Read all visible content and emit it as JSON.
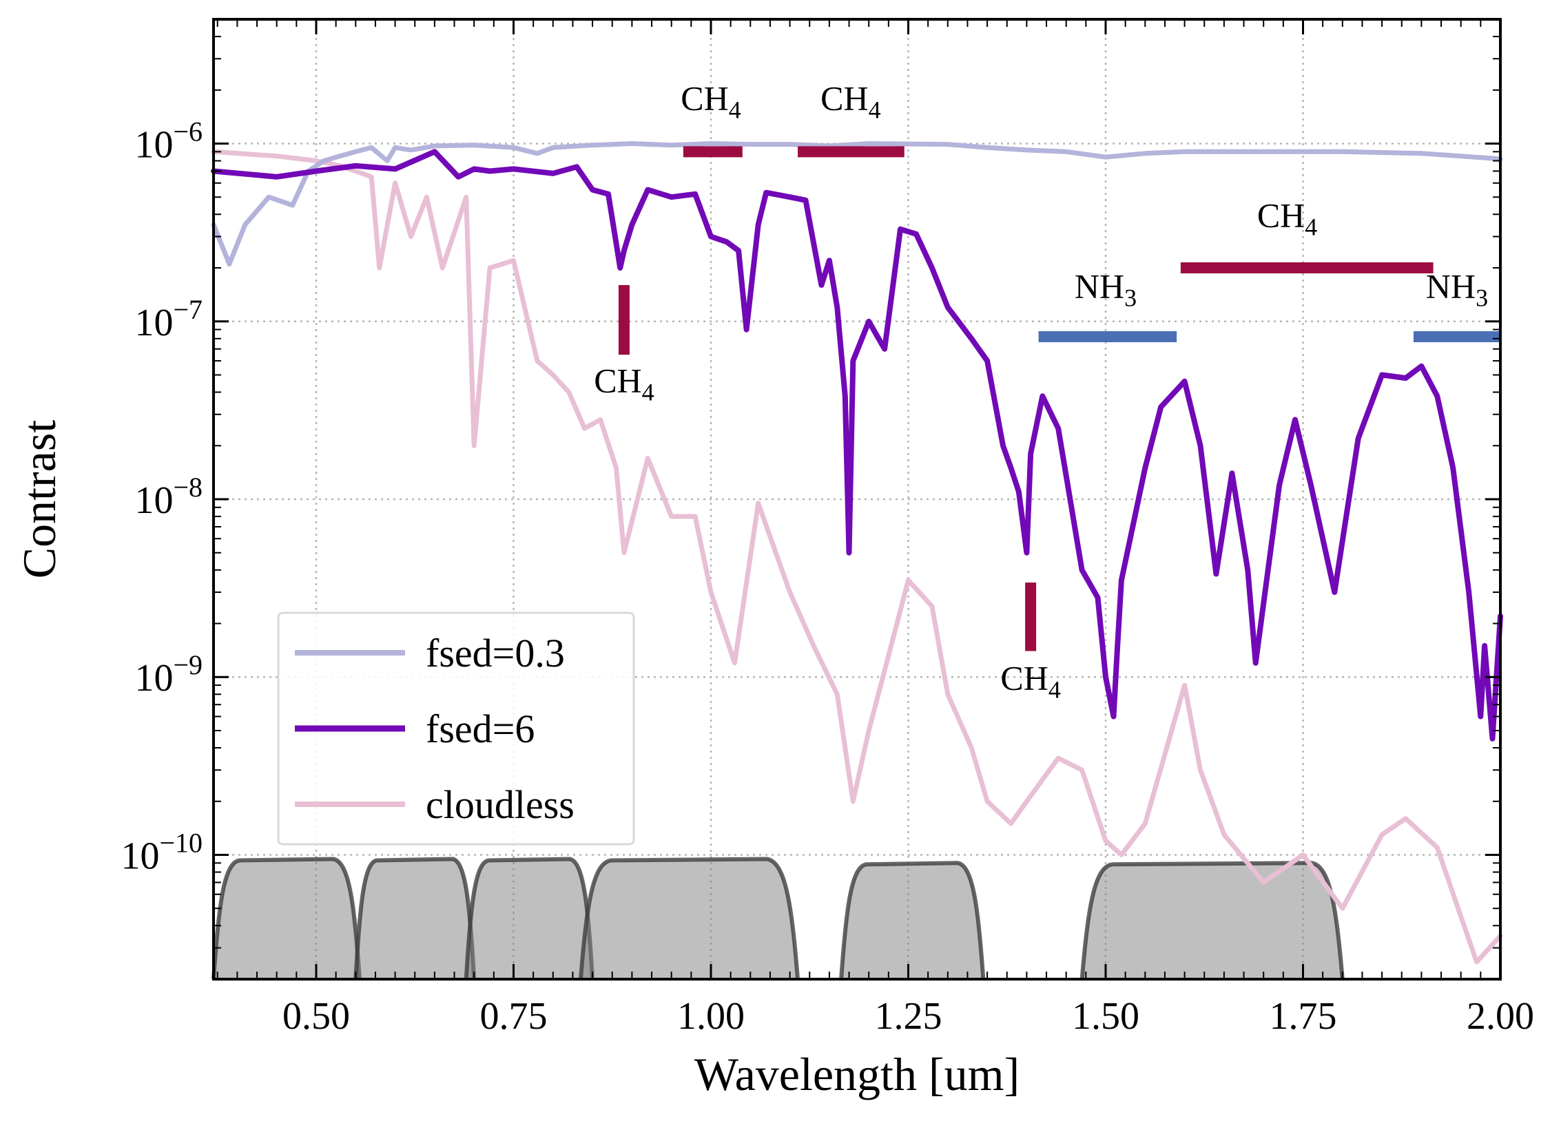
{
  "chart_data": {
    "type": "line",
    "title": "",
    "xlabel": "Wavelength [um]",
    "ylabel": "Contrast",
    "xlim": [
      0.37,
      2.0
    ],
    "ylim": [
      2e-11,
      5e-06
    ],
    "yscale": "log",
    "grid": true,
    "legend_placement": "lower-left",
    "x_ticks": [
      {
        "value": 0.5,
        "label": "0.50"
      },
      {
        "value": 0.75,
        "label": "0.75"
      },
      {
        "value": 1.0,
        "label": "1.00"
      },
      {
        "value": 1.25,
        "label": "1.25"
      },
      {
        "value": 1.5,
        "label": "1.50"
      },
      {
        "value": 1.75,
        "label": "1.75"
      },
      {
        "value": 2.0,
        "label": "2.00"
      }
    ],
    "y_ticks": [
      {
        "value": 1e-10,
        "mantissa": "10",
        "exponent": "−10"
      },
      {
        "value": 1e-09,
        "mantissa": "10",
        "exponent": "−9"
      },
      {
        "value": 1e-08,
        "mantissa": "10",
        "exponent": "−8"
      },
      {
        "value": 1e-07,
        "mantissa": "10",
        "exponent": "−7"
      },
      {
        "value": 1e-06,
        "mantissa": "10",
        "exponent": "−6"
      }
    ],
    "series": [
      {
        "name": "fsed=0.3",
        "color": "#b3b3db",
        "x": [
          0.37,
          0.39,
          0.41,
          0.44,
          0.47,
          0.49,
          0.51,
          0.53,
          0.55,
          0.57,
          0.59,
          0.6,
          0.62,
          0.65,
          0.7,
          0.75,
          0.78,
          0.8,
          0.85,
          0.9,
          0.95,
          1.0,
          1.05,
          1.1,
          1.15,
          1.2,
          1.3,
          1.35,
          1.4,
          1.45,
          1.5,
          1.55,
          1.6,
          1.7,
          1.8,
          1.9,
          1.95,
          2.0
        ],
        "y": [
          3.5e-07,
          2.1e-07,
          3.5e-07,
          5e-07,
          4.5e-07,
          7e-07,
          8e-07,
          8.5e-07,
          9e-07,
          9.5e-07,
          8e-07,
          9.5e-07,
          9.2e-07,
          9.7e-07,
          9.8e-07,
          9.5e-07,
          8.8e-07,
          9.5e-07,
          9.8e-07,
          1e-06,
          9.8e-07,
          1e-06,
          9.9e-07,
          9.9e-07,
          9.7e-07,
          1e-06,
          9.9e-07,
          9.5e-07,
          9.2e-07,
          9e-07,
          8.4e-07,
          8.8e-07,
          9e-07,
          9e-07,
          9e-07,
          8.8e-07,
          8.5e-07,
          8.2e-07
        ]
      },
      {
        "name": "fsed=6",
        "color": "#7209b7",
        "x": [
          0.37,
          0.45,
          0.5,
          0.55,
          0.6,
          0.65,
          0.68,
          0.7,
          0.72,
          0.75,
          0.8,
          0.83,
          0.85,
          0.87,
          0.885,
          0.89,
          0.9,
          0.92,
          0.95,
          0.98,
          1.0,
          1.02,
          1.035,
          1.045,
          1.06,
          1.07,
          1.1,
          1.12,
          1.14,
          1.15,
          1.16,
          1.17,
          1.175,
          1.18,
          1.2,
          1.22,
          1.24,
          1.26,
          1.28,
          1.3,
          1.33,
          1.35,
          1.37,
          1.38,
          1.39,
          1.4,
          1.405,
          1.42,
          1.44,
          1.47,
          1.49,
          1.5,
          1.51,
          1.515,
          1.52,
          1.55,
          1.57,
          1.6,
          1.62,
          1.64,
          1.66,
          1.68,
          1.69,
          1.72,
          1.74,
          1.76,
          1.79,
          1.82,
          1.85,
          1.88,
          1.9,
          1.92,
          1.94,
          1.96,
          1.975,
          1.98,
          1.99,
          2.0
        ],
        "y": [
          7e-07,
          6.5e-07,
          7e-07,
          7.5e-07,
          7.2e-07,
          9e-07,
          6.5e-07,
          7.2e-07,
          7e-07,
          7.2e-07,
          6.8e-07,
          7.4e-07,
          5.5e-07,
          5.2e-07,
          2e-07,
          2.5e-07,
          3.5e-07,
          5.5e-07,
          5e-07,
          5.2e-07,
          3e-07,
          2.8e-07,
          2.5e-07,
          9e-08,
          3.5e-07,
          5.3e-07,
          5e-07,
          4.8e-07,
          1.6e-07,
          2.2e-07,
          1.2e-07,
          3.8e-08,
          5e-09,
          6e-08,
          1e-07,
          7e-08,
          3.3e-07,
          3.1e-07,
          2e-07,
          1.2e-07,
          8e-08,
          6e-08,
          2e-08,
          1.5e-08,
          1.1e-08,
          5e-09,
          1.8e-08,
          3.8e-08,
          2.5e-08,
          4e-09,
          2.8e-09,
          1e-09,
          6e-10,
          1.5e-09,
          3.5e-09,
          1.5e-08,
          3.3e-08,
          4.6e-08,
          2e-08,
          3.8e-09,
          1.4e-08,
          4e-09,
          1.2e-09,
          1.2e-08,
          2.8e-08,
          1.2e-08,
          3e-09,
          2.2e-08,
          5e-08,
          4.8e-08,
          5.6e-08,
          3.8e-08,
          1.5e-08,
          3e-09,
          6e-10,
          1.5e-09,
          4.5e-10,
          2.2e-09
        ]
      },
      {
        "name": "cloudless",
        "color": "#e8bfd4",
        "x": [
          0.37,
          0.45,
          0.5,
          0.53,
          0.55,
          0.57,
          0.58,
          0.6,
          0.62,
          0.64,
          0.66,
          0.69,
          0.7,
          0.72,
          0.75,
          0.78,
          0.8,
          0.82,
          0.84,
          0.86,
          0.88,
          0.89,
          0.92,
          0.95,
          0.98,
          1.0,
          1.03,
          1.06,
          1.1,
          1.13,
          1.16,
          1.18,
          1.2,
          1.25,
          1.28,
          1.3,
          1.33,
          1.35,
          1.38,
          1.4,
          1.44,
          1.47,
          1.5,
          1.52,
          1.55,
          1.6,
          1.62,
          1.65,
          1.7,
          1.75,
          1.8,
          1.85,
          1.88,
          1.92,
          1.95,
          1.97,
          2.0
        ],
        "y": [
          9e-07,
          8.5e-07,
          8e-07,
          7.5e-07,
          7e-07,
          6.5e-07,
          2e-07,
          6e-07,
          3e-07,
          5e-07,
          2e-07,
          5e-07,
          2e-08,
          2e-07,
          2.2e-07,
          6e-08,
          5e-08,
          4e-08,
          2.5e-08,
          2.8e-08,
          1.5e-08,
          5e-09,
          1.7e-08,
          8e-09,
          8e-09,
          3e-09,
          1.2e-09,
          9.5e-09,
          3e-09,
          1.5e-09,
          8e-10,
          2e-10,
          5e-10,
          3.5e-09,
          2.5e-09,
          8e-10,
          4e-10,
          2e-10,
          1.5e-10,
          2e-10,
          3.5e-10,
          3e-10,
          1.2e-10,
          1e-10,
          1.5e-10,
          9e-10,
          3e-10,
          1.3e-10,
          7e-11,
          1e-10,
          5e-11,
          1.3e-10,
          1.6e-10,
          1.1e-10,
          4.5e-11,
          2.5e-11,
          3.5e-11
        ]
      }
    ],
    "filter_bands": [
      {
        "from": 0.37,
        "to": 0.555,
        "level": 1e-10
      },
      {
        "from": 0.55,
        "to": 0.7,
        "level": 1e-10
      },
      {
        "from": 0.69,
        "to": 0.85,
        "level": 1e-10
      },
      {
        "from": 0.835,
        "to": 1.11,
        "level": 1e-10
      },
      {
        "from": 1.165,
        "to": 1.345,
        "level": 9.5e-11
      },
      {
        "from": 1.47,
        "to": 1.8,
        "level": 9.5e-11
      }
    ],
    "annotations": [
      {
        "molecule": "CH",
        "subscript": "4",
        "shape": "bar",
        "x_from": 0.965,
        "x_to": 1.04,
        "y": 9e-07,
        "color": "#9c0c42",
        "label_x": 1.0,
        "label_y": 1.55e-06
      },
      {
        "molecule": "CH",
        "subscript": "4",
        "shape": "bar",
        "x_from": 1.11,
        "x_to": 1.245,
        "y": 9e-07,
        "color": "#9c0c42",
        "label_x": 1.177,
        "label_y": 1.55e-06
      },
      {
        "molecule": "CH",
        "subscript": "4",
        "shape": "bar",
        "x_from": 1.595,
        "x_to": 1.915,
        "y": 2e-07,
        "color": "#9c0c42",
        "label_x": 1.73,
        "label_y": 3.4e-07
      },
      {
        "molecule": "CH",
        "subscript": "4",
        "shape": "tick",
        "x": 0.89,
        "y_from": 6.5e-08,
        "y_to": 1.6e-07,
        "color": "#9c0c42",
        "label_x": 0.89,
        "label_y": 4e-08
      },
      {
        "molecule": "CH",
        "subscript": "4",
        "shape": "tick",
        "x": 1.405,
        "y_from": 1.4e-09,
        "y_to": 3.4e-09,
        "color": "#9c0c42",
        "label_x": 1.405,
        "label_y": 8.5e-10
      },
      {
        "molecule": "NH",
        "subscript": "3",
        "shape": "bar",
        "x_from": 1.415,
        "x_to": 1.59,
        "y": 8.2e-08,
        "color": "#4a6fb5",
        "label_x": 1.5,
        "label_y": 1.36e-07
      },
      {
        "molecule": "NH",
        "subscript": "3",
        "shape": "bar",
        "x_from": 1.89,
        "x_to": 2.0,
        "y": 8.2e-08,
        "color": "#4a6fb5",
        "label_x": 1.945,
        "label_y": 1.36e-07
      }
    ]
  }
}
